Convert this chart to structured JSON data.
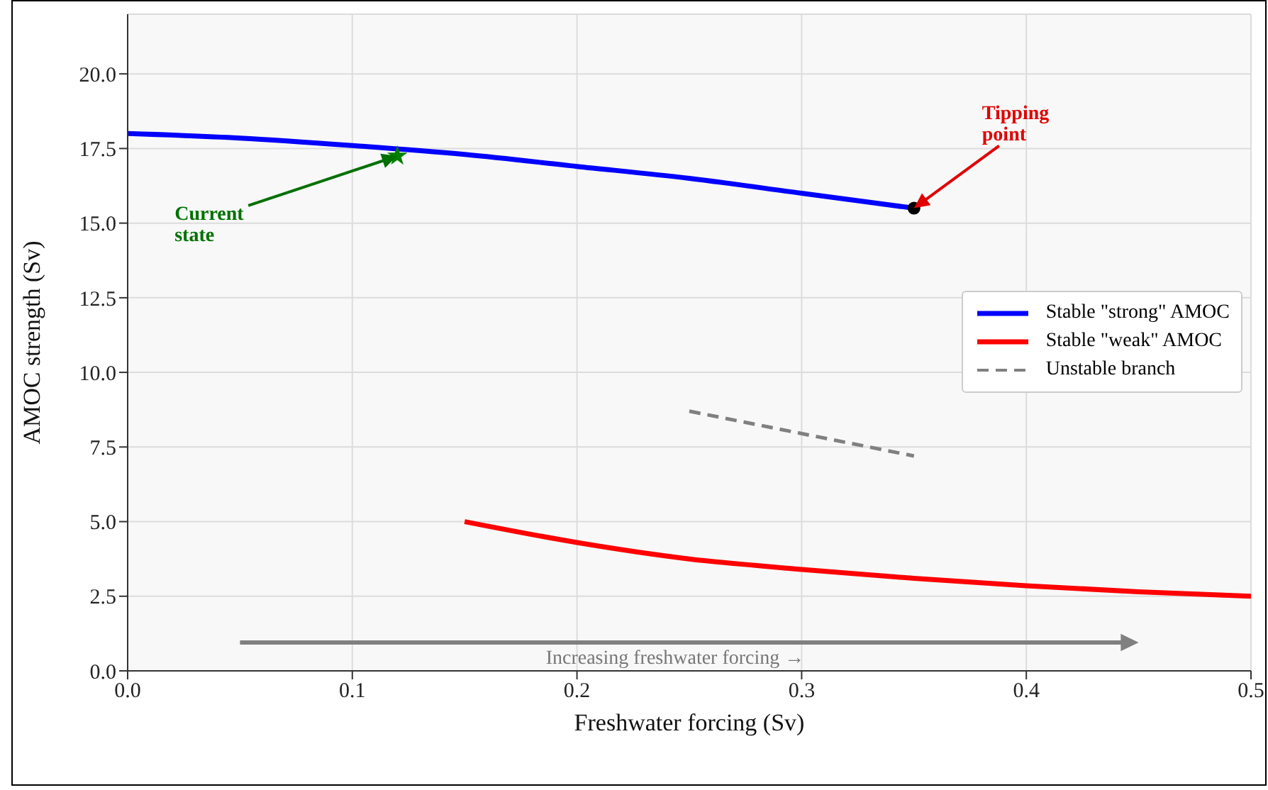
{
  "chart_data": {
    "type": "line",
    "xlabel": "Freshwater forcing (Sv)",
    "ylabel": "AMOC strength (Sv)",
    "xlim": [
      0,
      0.5
    ],
    "xticks": [
      {
        "value": 0,
        "label": "0.0"
      },
      0.1,
      0.2,
      0.3,
      0.4,
      0.5
    ],
    "ylim": [
      0,
      22
    ],
    "yticks": [
      {
        "value": 0,
        "label": "0.0"
      },
      2.5,
      {
        "value": 5,
        "label": "5.0"
      },
      7.5,
      {
        "value": 10,
        "label": "10.0"
      },
      12.5,
      {
        "value": 15,
        "label": "15.0"
      },
      17.5,
      {
        "value": 20,
        "label": "20.0"
      }
    ],
    "grid": true,
    "legend": "right",
    "marker": "none",
    "series": [
      {
        "name": "Stable \"strong\" AMOC",
        "color": "#0000ff",
        "x": [
          0,
          0.05,
          0.1,
          0.15,
          0.2,
          0.25,
          0.3,
          0.35
        ],
        "values": [
          18.0,
          17.85,
          17.6,
          17.3,
          16.9,
          16.5,
          16.0,
          15.5
        ]
      },
      {
        "name": "Stable \"weak\" AMOC",
        "color": "#ff0000",
        "x": [
          0.15,
          0.2,
          0.25,
          0.3,
          0.35,
          0.4,
          0.45,
          0.5
        ],
        "values": [
          5.0,
          4.3,
          3.75,
          3.4,
          3.1,
          2.85,
          2.65,
          2.5
        ]
      },
      {
        "name": "Unstable branch",
        "color": "#808080",
        "line_style": "dashed",
        "x": [
          0.25,
          0.35
        ],
        "values": [
          8.7,
          7.2
        ]
      },
      {
        "type": "scatter",
        "marker": "star",
        "color": "#008000",
        "x": [
          0.12
        ],
        "values": [
          17.25
        ]
      },
      {
        "type": "scatter",
        "marker": "circle",
        "color": "#000000",
        "x": [
          0.35
        ],
        "values": [
          15.5
        ]
      }
    ],
    "annotations": [
      {
        "text": "Current state",
        "x": 0.12,
        "y": 17.25
      },
      {
        "text": "Tipping point",
        "x": 0.35,
        "y": 15.5
      },
      "Increasing freshwater forcing →"
    ]
  }
}
